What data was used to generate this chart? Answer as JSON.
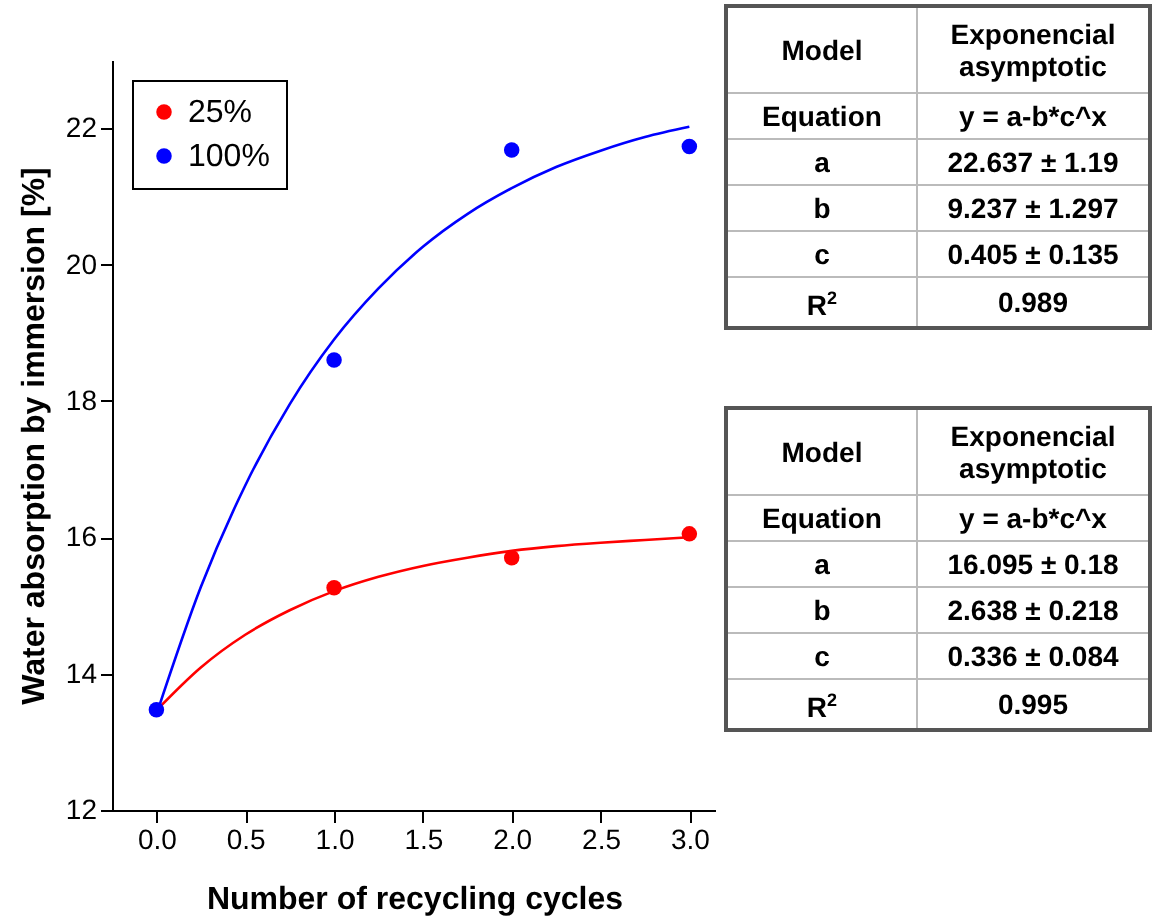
{
  "chart_data": {
    "type": "scatter",
    "xlabel": "Number of recycling cycles",
    "ylabel": "Water absorption by immersion [%]",
    "x": [
      0,
      1,
      2,
      3
    ],
    "xlim": [
      -0.25,
      3.15
    ],
    "xticks": [
      {
        "value": 0,
        "label": "0.0"
      },
      {
        "value": 0.5,
        "label": "0.5"
      },
      {
        "value": 1,
        "label": "1.0"
      },
      {
        "value": 1.5,
        "label": "1.5"
      },
      {
        "value": 2,
        "label": "2.0"
      },
      {
        "value": 2.5,
        "label": "2.5"
      },
      {
        "value": 3,
        "label": "3.0"
      }
    ],
    "ylim": [
      12,
      23
    ],
    "yticks": [
      12,
      14,
      16,
      18,
      20,
      22
    ],
    "series": [
      {
        "name": "25%",
        "color": "#ff0000",
        "marker": "circle",
        "values": [
          null,
          15.26,
          15.7,
          16.05
        ]
      },
      {
        "name": "100%",
        "color": "#0000ff",
        "marker": "circle",
        "values": [
          13.47,
          18.6,
          21.68,
          21.73
        ]
      },
      {
        "type": "line",
        "color": "#ff0000",
        "x": [
          0,
          0.25,
          0.5,
          0.75,
          1,
          1.25,
          1.5,
          1.75,
          2,
          2.25,
          2.5,
          2.75,
          3
        ],
        "values": [
          13.46,
          14.09,
          14.57,
          14.93,
          15.21,
          15.42,
          15.58,
          15.7,
          15.8,
          15.87,
          15.92,
          15.96,
          16.0
        ]
      },
      {
        "type": "line",
        "color": "#0000ff",
        "x": [
          0,
          0.25,
          0.5,
          0.75,
          1,
          1.25,
          1.5,
          1.75,
          2,
          2.25,
          2.5,
          2.75,
          3
        ],
        "values": [
          13.4,
          15.27,
          16.76,
          17.95,
          18.9,
          19.65,
          20.26,
          20.74,
          21.12,
          21.43,
          21.67,
          21.87,
          22.02
        ]
      }
    ],
    "legend": "top left",
    "grid": false,
    "annotations": [
      "Model",
      "Exponencial asymptotic",
      "Equation",
      "y = a-b*c^x",
      "a",
      "22.637 ± 1.19",
      "b",
      "9.237 ± 1.297",
      "c",
      "0.405 ± 0.135",
      "R$^{2}$",
      "0.989",
      "Model",
      "Exponencial asymptotic",
      "Equation",
      "y = a-b*c^x",
      "a",
      "16.095 ± 0.18",
      "b",
      "2.638 ± 0.218",
      "c",
      "0.336 ± 0.084",
      "R$^{2}$",
      "0.995"
    ]
  }
}
